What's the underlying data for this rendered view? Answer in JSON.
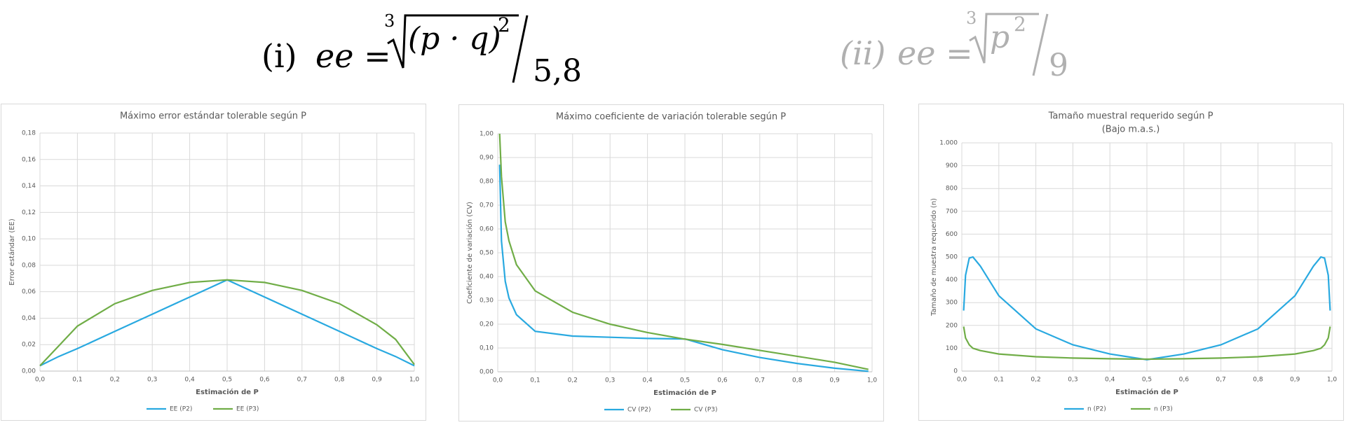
{
  "formulas": [
    {
      "label": "(i)",
      "lhs": "ee =",
      "index": "3",
      "radicand": "(p · q)",
      "exponent": "2",
      "denominator": "5,8"
    },
    {
      "label": "(ii)",
      "lhs": "ee =",
      "index": "3",
      "radicand": "p",
      "exponent": "2",
      "denominator": "9"
    }
  ],
  "chart_data": [
    {
      "type": "line",
      "title": "Máximo error estándar tolerable según P",
      "x_label": "Estimación de P",
      "y_label": "Error estándar (EE)",
      "x": [
        0,
        0.05,
        0.1,
        0.2,
        0.3,
        0.4,
        0.5,
        0.6,
        0.7,
        0.8,
        0.9,
        0.95,
        1.0
      ],
      "series": [
        {
          "name": "EE (P2)",
          "color": "#29a9e0",
          "values": [
            0.004,
            0.011,
            0.017,
            0.03,
            0.043,
            0.056,
            0.069,
            0.056,
            0.043,
            0.03,
            0.017,
            0.011,
            0.004
          ]
        },
        {
          "name": "EE (P3)",
          "color": "#70ad47",
          "values": [
            0.004,
            0.019,
            0.034,
            0.051,
            0.061,
            0.067,
            0.069,
            0.067,
            0.061,
            0.051,
            0.035,
            0.024,
            0.005
          ]
        }
      ],
      "xlim": [
        0,
        1
      ],
      "xticks": [
        {
          "value": 0,
          "label": "0,0"
        },
        {
          "value": 0.1,
          "label": "0,1"
        },
        {
          "value": 0.2,
          "label": "0,2"
        },
        {
          "value": 0.3,
          "label": "0,3"
        },
        {
          "value": 0.4,
          "label": "0,4"
        },
        {
          "value": 0.5,
          "label": "0,5"
        },
        {
          "value": 0.6,
          "label": "0,6"
        },
        {
          "value": 0.7,
          "label": "0,7"
        },
        {
          "value": 0.8,
          "label": "0,8"
        },
        {
          "value": 0.9,
          "label": "0,9"
        },
        {
          "value": 1,
          "label": "1,0"
        }
      ],
      "ylim": [
        0,
        0.18
      ],
      "yticks": [
        {
          "value": 0,
          "label": "0,00"
        },
        {
          "value": 0.02,
          "label": "0,02"
        },
        {
          "value": 0.04,
          "label": "0,04"
        },
        {
          "value": 0.06,
          "label": "0,06"
        },
        {
          "value": 0.08,
          "label": "0,08"
        },
        {
          "value": 0.1,
          "label": "0,10"
        },
        {
          "value": 0.12,
          "label": "0,12"
        },
        {
          "value": 0.14,
          "label": "0,14"
        },
        {
          "value": 0.16,
          "label": "0,16"
        },
        {
          "value": 0.18,
          "label": "0,18"
        }
      ],
      "grid": true,
      "legend": "bottom"
    },
    {
      "type": "line",
      "title": "Máximo coeficiente de variación tolerable según P",
      "x_label": "Estimación de P",
      "y_label": "Coeficiente de variación (CV)",
      "x": [
        0.005,
        0.01,
        0.02,
        0.03,
        0.05,
        0.1,
        0.2,
        0.3,
        0.4,
        0.5,
        0.6,
        0.7,
        0.8,
        0.9,
        0.99
      ],
      "series": [
        {
          "name": "CV (P2)",
          "color": "#29a9e0",
          "values": [
            0.87,
            0.55,
            0.38,
            0.31,
            0.24,
            0.17,
            0.15,
            0.145,
            0.14,
            0.138,
            0.093,
            0.06,
            0.035,
            0.015,
            0.002
          ]
        },
        {
          "name": "CV (P3)",
          "color": "#70ad47",
          "values": [
            1.0,
            0.82,
            0.63,
            0.55,
            0.45,
            0.34,
            0.25,
            0.2,
            0.165,
            0.137,
            0.115,
            0.09,
            0.065,
            0.04,
            0.01
          ]
        }
      ],
      "xlim": [
        0,
        1
      ],
      "xticks": [
        {
          "value": 0,
          "label": "0,0"
        },
        {
          "value": 0.1,
          "label": "0,1"
        },
        {
          "value": 0.2,
          "label": "0,2"
        },
        {
          "value": 0.3,
          "label": "0,3"
        },
        {
          "value": 0.4,
          "label": "0,4"
        },
        {
          "value": 0.5,
          "label": "0,5"
        },
        {
          "value": 0.6,
          "label": "0,6"
        },
        {
          "value": 0.7,
          "label": "0,7"
        },
        {
          "value": 0.8,
          "label": "0,8"
        },
        {
          "value": 0.9,
          "label": "0,9"
        },
        {
          "value": 1,
          "label": "1,0"
        }
      ],
      "ylim": [
        0,
        1
      ],
      "yticks": [
        {
          "value": 0,
          "label": "0,00"
        },
        {
          "value": 0.1,
          "label": "0,10"
        },
        {
          "value": 0.2,
          "label": "0,20"
        },
        {
          "value": 0.3,
          "label": "0,30"
        },
        {
          "value": 0.4,
          "label": "0,40"
        },
        {
          "value": 0.5,
          "label": "0,50"
        },
        {
          "value": 0.6,
          "label": "0,60"
        },
        {
          "value": 0.7,
          "label": "0,70"
        },
        {
          "value": 0.8,
          "label": "0,80"
        },
        {
          "value": 0.9,
          "label": "0,90"
        },
        {
          "value": 1,
          "label": "1,00"
        }
      ],
      "grid": true,
      "legend": "bottom"
    },
    {
      "type": "line",
      "title": "Tamaño muestral requerido según P",
      "subtitle": "(Bajo m.a.s.)",
      "x_label": "Estimación de P",
      "y_label": "Tamaño de muestra requerido (n)",
      "x": [
        0.005,
        0.01,
        0.02,
        0.03,
        0.05,
        0.1,
        0.2,
        0.3,
        0.4,
        0.5,
        0.6,
        0.7,
        0.8,
        0.9,
        0.95,
        0.97,
        0.98,
        0.99,
        0.995
      ],
      "series": [
        {
          "name": "n (P2)",
          "color": "#29a9e0",
          "values": [
            265,
            420,
            495,
            500,
            460,
            330,
            185,
            115,
            75,
            50,
            75,
            115,
            185,
            330,
            460,
            500,
            495,
            420,
            265
          ]
        },
        {
          "name": "n (P3)",
          "color": "#70ad47",
          "values": [
            195,
            145,
            115,
            100,
            90,
            75,
            63,
            57,
            54,
            52,
            54,
            57,
            63,
            75,
            90,
            100,
            115,
            145,
            195
          ]
        }
      ],
      "xlim": [
        0,
        1
      ],
      "xticks": [
        {
          "value": 0,
          "label": "0,0"
        },
        {
          "value": 0.1,
          "label": "0,1"
        },
        {
          "value": 0.2,
          "label": "0,2"
        },
        {
          "value": 0.3,
          "label": "0,3"
        },
        {
          "value": 0.4,
          "label": "0,4"
        },
        {
          "value": 0.5,
          "label": "0,5"
        },
        {
          "value": 0.6,
          "label": "0,6"
        },
        {
          "value": 0.7,
          "label": "0,7"
        },
        {
          "value": 0.8,
          "label": "0,8"
        },
        {
          "value": 0.9,
          "label": "0,9"
        },
        {
          "value": 1,
          "label": "1,0"
        }
      ],
      "ylim": [
        0,
        1000
      ],
      "yticks": [
        0,
        100,
        200,
        300,
        400,
        500,
        600,
        700,
        800,
        900,
        {
          "value": 1000,
          "label": "1.000"
        }
      ],
      "grid": true,
      "legend": "bottom"
    }
  ]
}
